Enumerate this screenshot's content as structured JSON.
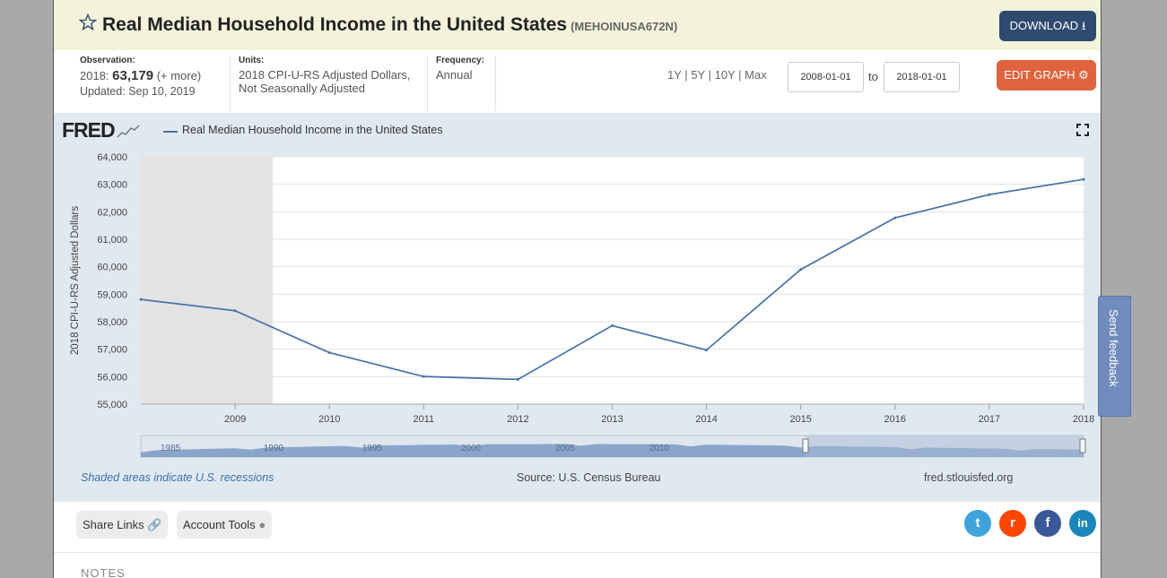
{
  "header": {
    "title": "Real Median Household Income in the United States",
    "series_id": "(MEHOINUSA672N)",
    "download_label": "DOWNLOAD"
  },
  "meta": {
    "observation_label": "Observation:",
    "observation_year": "2018:",
    "observation_value": "63,179",
    "observation_more": "(+ more)",
    "updated": "Updated: Sep 10, 2019",
    "units_label": "Units:",
    "units_line1": "2018 CPI-U-RS Adjusted Dollars,",
    "units_line2": "Not Seasonally Adjusted",
    "frequency_label": "Frequency:",
    "frequency_value": "Annual"
  },
  "controls": {
    "range_1y": "1Y",
    "range_5y": "5Y",
    "range_10y": "10Y",
    "range_max": "Max",
    "sep": "|",
    "date_from": "2008-01-01",
    "date_to": "2018-01-01",
    "to_label": "to",
    "edit_label": "EDIT GRAPH"
  },
  "graph": {
    "logo": "FRED",
    "recession_note": "Shaded areas indicate U.S. recessions",
    "source": "Source: U.S. Census Bureau",
    "site": "fred.stlouisfed.org"
  },
  "chart_data": {
    "type": "line",
    "title": "",
    "ylabel": "2018 CPI-U-RS Adjusted Dollars",
    "xlabel": "",
    "x": [
      2008,
      2009,
      2010,
      2011,
      2012,
      2013,
      2014,
      2015,
      2016,
      2017,
      2018
    ],
    "series": [
      {
        "name": "Real Median Household Income in the United States",
        "values": [
          58811,
          58400,
          56873,
          56006,
          55900,
          57856,
          56969,
          59901,
          61779,
          62626,
          63179
        ]
      }
    ],
    "x_ticks": [
      "2009",
      "2010",
      "2011",
      "2012",
      "2013",
      "2014",
      "2015",
      "2016",
      "2017",
      "2018"
    ],
    "y_ticks": [
      "55,000",
      "56,000",
      "57,000",
      "58,000",
      "59,000",
      "60,000",
      "61,000",
      "62,000",
      "63,000",
      "64,000"
    ],
    "ylim": [
      55000,
      64000
    ],
    "recessions": [
      {
        "start": 2008.0,
        "end": 2009.4
      }
    ],
    "navigator_labels": [
      "1985",
      "1990",
      "1995",
      "2000",
      "2005",
      "2010"
    ],
    "line_color": "#4572a7",
    "recession_color": "#e3e3e3",
    "grid": true
  },
  "bottom": {
    "share_links": "Share Links",
    "account_tools": "Account Tools",
    "notes": "NOTES",
    "feedback": "Send feedback"
  },
  "colors": {
    "download": "#2e4a6e",
    "edit": "#e0633d",
    "twitter": "#3fa3dd",
    "reddit": "#ff4500",
    "facebook": "#3b5998",
    "linkedin": "#1b86bc"
  }
}
